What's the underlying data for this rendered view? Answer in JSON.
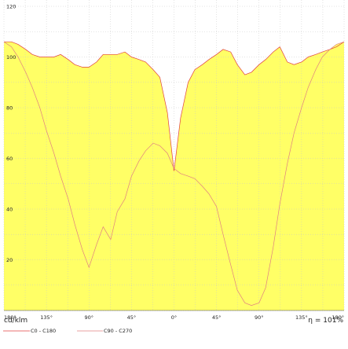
{
  "chart_data": {
    "type": "line",
    "unit_label": "cd/klm",
    "efficiency_label": "η = 101%",
    "y_ticks": [
      "20",
      "40",
      "60",
      "80",
      "100",
      "120"
    ],
    "x_ticks": [
      "180°",
      "135°",
      "90°",
      "45°",
      "0°",
      "45°",
      "90°",
      "135°",
      "180°"
    ],
    "ylim": [
      0,
      120
    ],
    "xlim": [
      -180,
      180
    ],
    "grid": true,
    "fill_color": "#ffff66",
    "series": [
      {
        "name": "C0 - C180",
        "color": "#e04040",
        "x": [
          -180,
          -172,
          -165,
          -157,
          -150,
          -142,
          -135,
          -127,
          -120,
          -112,
          -105,
          -97,
          -90,
          -82,
          -75,
          -67,
          -60,
          -52,
          -45,
          -37,
          -30,
          -22,
          -15,
          -7,
          0,
          7,
          15,
          22,
          30,
          37,
          45,
          52,
          60,
          67,
          75,
          82,
          90,
          97,
          105,
          112,
          120,
          127,
          135,
          142,
          150,
          157,
          165,
          172,
          180
        ],
        "y": [
          106,
          106,
          105,
          103,
          101,
          100,
          100,
          100,
          101,
          99,
          97,
          96,
          96,
          98,
          101,
          101,
          101,
          102,
          100,
          99,
          98,
          95,
          92,
          78,
          55,
          76,
          90,
          95,
          97,
          99,
          101,
          103,
          102,
          97,
          93,
          94,
          97,
          99,
          102,
          104,
          98,
          97,
          98,
          100,
          101,
          102,
          103,
          104,
          106
        ]
      },
      {
        "name": "C90 - C270",
        "color": "#e08080",
        "x": [
          -180,
          -172,
          -165,
          -157,
          -150,
          -142,
          -135,
          -127,
          -120,
          -112,
          -105,
          -97,
          -90,
          -82,
          -75,
          -67,
          -60,
          -52,
          -45,
          -37,
          -30,
          -22,
          -15,
          -7,
          0,
          7,
          15,
          22,
          30,
          37,
          45,
          52,
          60,
          67,
          75,
          82,
          90,
          97,
          105,
          112,
          120,
          127,
          135,
          142,
          150,
          157,
          165,
          172,
          180
        ],
        "y": [
          106,
          104,
          100,
          94,
          88,
          80,
          71,
          62,
          53,
          44,
          34,
          24,
          17,
          26,
          33,
          28,
          39,
          44,
          53,
          59,
          63,
          66,
          65,
          62,
          56,
          54,
          53,
          52,
          49,
          46,
          41,
          30,
          18,
          8,
          3,
          2,
          3,
          9,
          25,
          42,
          58,
          70,
          80,
          88,
          95,
          100,
          103,
          105,
          106
        ]
      }
    ]
  }
}
